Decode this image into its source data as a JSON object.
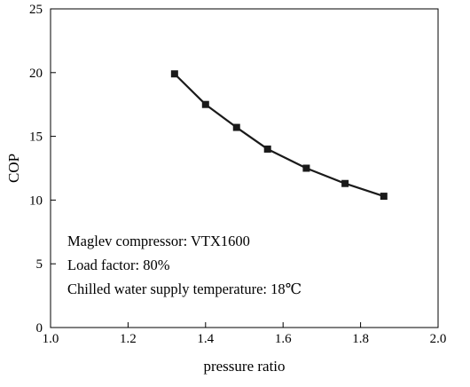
{
  "chart_data": {
    "type": "line",
    "title": "",
    "xlabel": "pressure ratio",
    "ylabel": "COP",
    "xlim": [
      1.0,
      2.0
    ],
    "ylim": [
      0,
      25
    ],
    "x_ticks": [
      "1.0",
      "1.2",
      "1.4",
      "1.6",
      "1.8",
      "2.0"
    ],
    "y_ticks": [
      "0",
      "5",
      "10",
      "15",
      "20",
      "25"
    ],
    "grid": false,
    "marker": "square",
    "series": [
      {
        "x": [
          1.32,
          1.4,
          1.48,
          1.56,
          1.66,
          1.76,
          1.86
        ],
        "y": [
          19.9,
          17.5,
          15.7,
          14.0,
          12.5,
          11.3,
          10.3
        ],
        "color": "#1a1a1a"
      }
    ],
    "annotations": [
      "Maglev compressor: VTX1600",
      "Load factor: 80%",
      "Chilled water supply temperature: 18℃"
    ]
  }
}
